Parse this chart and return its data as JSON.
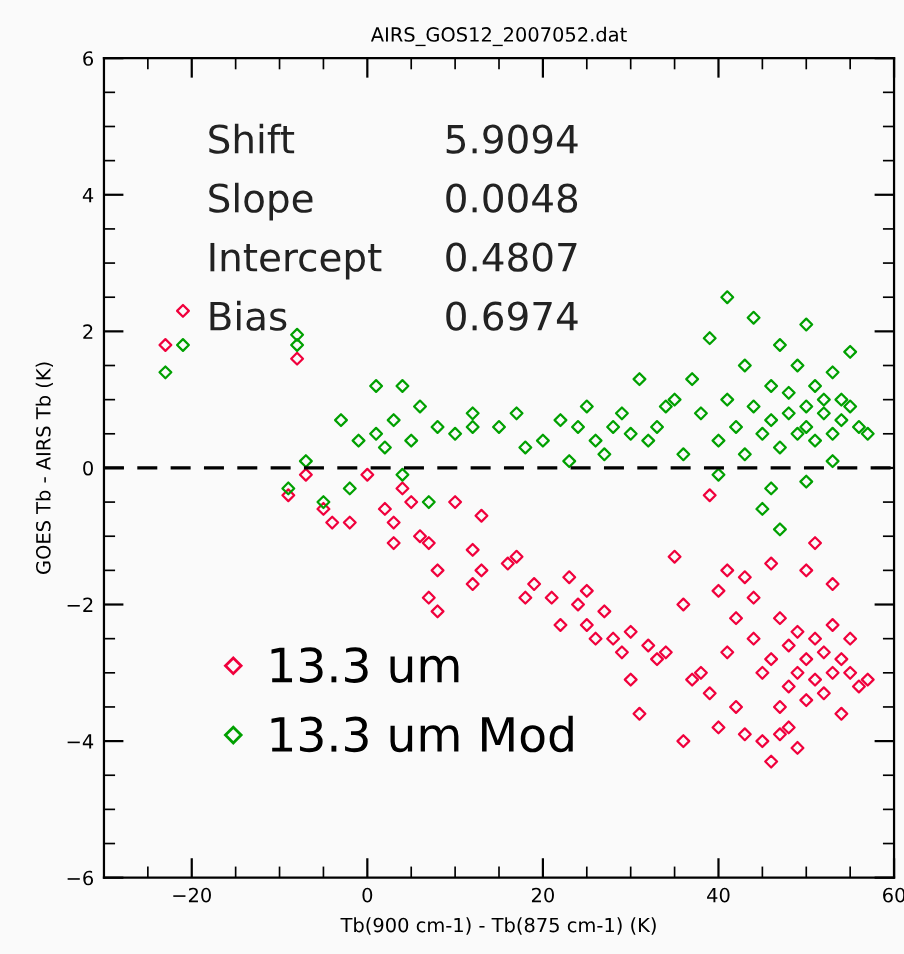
{
  "chart_data": {
    "type": "scatter",
    "title": "AIRS_GOS12_2007052.dat",
    "xlabel": "Tb(900 cm-1) - Tb(875 cm-1) (K)",
    "ylabel": "GOES Tb - AIRS Tb (K)",
    "xlim": [
      -30,
      60
    ],
    "xticks": [
      -20,
      0,
      20,
      40,
      60
    ],
    "ylim": [
      -6,
      6
    ],
    "yticks": [
      -6,
      -4,
      -2,
      0,
      2,
      4,
      6
    ],
    "grid": false,
    "legend": "bottom left",
    "marker": "diamond",
    "annotations": [
      "Shift",
      "5.9094",
      "Slope",
      "0.0048",
      "Intercept",
      "0.4807",
      "Bias",
      "0.6974"
    ],
    "ref_lines": [
      {
        "axis": "y",
        "value": 0,
        "color": "#000000",
        "line_style": "dashed"
      }
    ],
    "series": [
      {
        "name": "13.3 um",
        "color": "#f0003c",
        "x": [
          -23,
          -21,
          -8,
          -9,
          -7,
          -5,
          -4,
          -2,
          0,
          2,
          3,
          3,
          4,
          5,
          6,
          7,
          7,
          8,
          8,
          10,
          12,
          12,
          13,
          13,
          16,
          17,
          18,
          19,
          21,
          22,
          23,
          24,
          25,
          25,
          26,
          27,
          28,
          29,
          30,
          30,
          31,
          32,
          33,
          34,
          35,
          36,
          36,
          37,
          38,
          39,
          39,
          40,
          40,
          41,
          41,
          42,
          42,
          43,
          43,
          44,
          44,
          45,
          45,
          46,
          46,
          46,
          47,
          47,
          48,
          48,
          48,
          49,
          49,
          50,
          50,
          50,
          51,
          51,
          52,
          52,
          53,
          53,
          54,
          54,
          55,
          55,
          56,
          57,
          53,
          51,
          49,
          47
        ],
        "values": [
          1.8,
          2.3,
          1.6,
          -0.4,
          -0.1,
          -0.6,
          -0.8,
          -0.8,
          -0.1,
          -0.6,
          -0.8,
          -1.1,
          -0.3,
          -0.5,
          -1.0,
          -1.1,
          -1.9,
          -2.1,
          -1.5,
          -0.5,
          -1.2,
          -1.7,
          -0.7,
          -1.5,
          -1.4,
          -1.3,
          -1.9,
          -1.7,
          -1.9,
          -2.3,
          -1.6,
          -2.0,
          -2.3,
          -1.8,
          -2.5,
          -2.1,
          -2.5,
          -2.7,
          -3.1,
          -2.4,
          -3.6,
          -2.6,
          -2.8,
          -2.7,
          -1.3,
          -2.0,
          -4.0,
          -3.1,
          -3.0,
          -3.3,
          -0.4,
          -1.8,
          -3.8,
          -1.5,
          -2.7,
          -2.2,
          -3.5,
          -1.6,
          -3.9,
          -2.5,
          -1.9,
          -3.0,
          -4.0,
          -2.8,
          -4.3,
          -1.4,
          -3.5,
          -2.2,
          -2.6,
          -3.8,
          -3.2,
          -2.4,
          -3.0,
          -2.8,
          -3.4,
          -1.5,
          -2.5,
          -3.1,
          -2.7,
          -3.3,
          -2.3,
          -3.0,
          -2.8,
          -3.6,
          -3.0,
          -2.5,
          -3.2,
          -3.1,
          -1.7,
          -1.1,
          -4.1,
          -3.9
        ]
      },
      {
        "name": "13.3 um Mod",
        "color": "#00a000",
        "x": [
          -23,
          -21,
          -8,
          -8,
          -9,
          -7,
          -5,
          -3,
          -2,
          -1,
          1,
          1,
          2,
          3,
          4,
          4,
          5,
          6,
          7,
          8,
          10,
          12,
          12,
          15,
          17,
          18,
          20,
          22,
          23,
          24,
          25,
          26,
          27,
          28,
          29,
          30,
          31,
          32,
          33,
          34,
          35,
          36,
          37,
          38,
          39,
          40,
          40,
          41,
          41,
          42,
          43,
          43,
          44,
          44,
          45,
          45,
          46,
          46,
          46,
          47,
          47,
          47,
          48,
          48,
          49,
          49,
          50,
          50,
          50,
          51,
          51,
          52,
          52,
          53,
          53,
          54,
          54,
          55,
          56,
          57,
          55,
          50,
          53
        ],
        "values": [
          1.4,
          1.8,
          1.8,
          1.95,
          -0.3,
          0.1,
          -0.5,
          0.7,
          -0.3,
          0.4,
          0.5,
          1.2,
          0.3,
          0.7,
          1.2,
          -0.1,
          0.4,
          0.9,
          -0.5,
          0.6,
          0.5,
          0.6,
          0.8,
          0.6,
          0.8,
          0.3,
          0.4,
          0.7,
          0.1,
          0.6,
          0.9,
          0.4,
          0.2,
          0.6,
          0.8,
          0.5,
          1.3,
          0.4,
          0.6,
          0.9,
          1.0,
          0.2,
          1.3,
          0.8,
          1.9,
          0.4,
          -0.1,
          1.0,
          2.5,
          0.6,
          1.5,
          0.2,
          0.9,
          2.2,
          0.5,
          -0.6,
          1.2,
          0.7,
          -0.3,
          1.8,
          -0.9,
          0.3,
          0.8,
          1.1,
          0.5,
          1.5,
          0.9,
          0.6,
          -0.2,
          1.2,
          0.4,
          0.8,
          1.0,
          0.5,
          1.4,
          0.7,
          1.0,
          0.9,
          0.6,
          0.5,
          1.7,
          2.1,
          0.1
        ]
      }
    ]
  }
}
